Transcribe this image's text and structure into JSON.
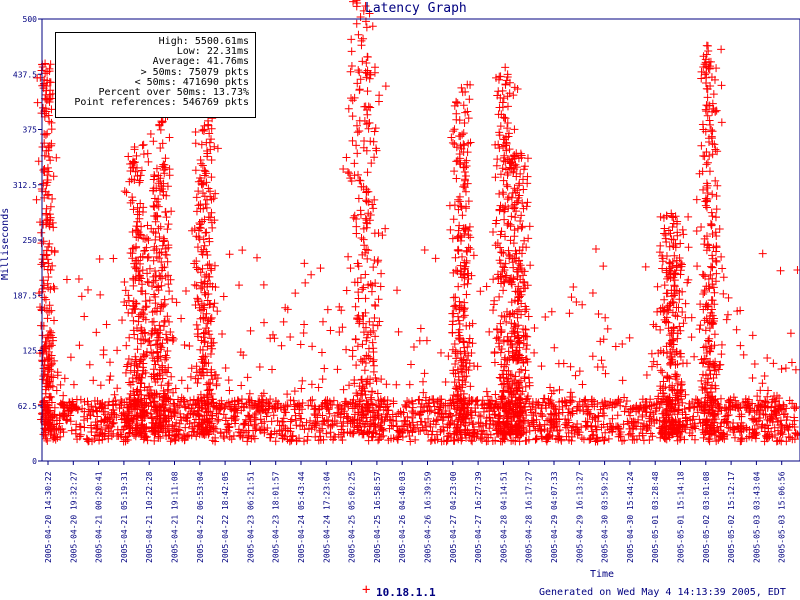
{
  "chart_data": {
    "type": "scatter",
    "title": "Latency Graph",
    "ylabel": "Milliseconds",
    "xlabel": "Time",
    "ylim": [
      0,
      500
    ],
    "y_ticks": [
      "0",
      "62.5",
      "125",
      "187.5",
      "250",
      "312.5",
      "375",
      "437.5",
      "500"
    ],
    "x_ticks": [
      "2005-04-20 14:30:22",
      "2005-04-20 19:32:27",
      "2005-04-21 00:20:41",
      "2005-04-21 05:19:31",
      "2005-04-21 10:22:28",
      "2005-04-21 19:11:08",
      "2005-04-22 06:53:04",
      "2005-04-22 18:42:05",
      "2005-04-23 06:21:51",
      "2005-04-23 18:01:57",
      "2005-04-24 05:43:44",
      "2005-04-24 17:23:04",
      "2005-04-25 05:02:25",
      "2005-04-25 16:58:57",
      "2005-04-26 04:40:03",
      "2005-04-26 16:39:59",
      "2005-04-27 04:23:00",
      "2005-04-27 16:27:39",
      "2005-04-28 04:14:51",
      "2005-04-28 16:17:27",
      "2005-04-29 04:07:33",
      "2005-04-29 16:13:27",
      "2005-04-30 03:59:25",
      "2005-04-30 15:44:24",
      "2005-05-01 03:28:48",
      "2005-05-01 15:14:18",
      "2005-05-02 03:01:08",
      "2005-05-02 15:12:17",
      "2005-05-03 03:43:04",
      "2005-05-03 15:06:56"
    ],
    "grid": false,
    "series": [
      {
        "name": "10.18.1.1",
        "color": "#ff0000"
      }
    ],
    "stats": {
      "high": "5500.61ms",
      "low": "22.31ms",
      "average": "41.76ms",
      "over_50": "75079 pkts",
      "under_50": "471690 pkts",
      "percent_over_50": "13.73%",
      "point_references": "546769 pkts"
    },
    "note": "Latency spikes cluster around x-ticks 2005-04-21 10:22:28, 2005-04-21 19:11:08, 2005-04-22 06:53:04, 2005-04-25 16:58:57, 2005-04-27 16:27:39, 2005-04-28 04:14:51, 2005-04-28 16:17:27 and 2005-05-02 03:01:08; baseline about 25-70 ms."
  },
  "labels": {
    "high": "High:",
    "low": "Low:",
    "average": "Average:",
    "over_50": "> 50ms:",
    "under_50": "< 50ms:",
    "percent_over_50": "Percent over 50ms:",
    "point_references": "Point references:"
  },
  "legend": {
    "marker": "+",
    "host": "10.18.1.1"
  },
  "generated_text": "Generated on Wed May  4 14:13:39 2005, EDT",
  "colors": {
    "axis": "#000080",
    "points": "#ff0000",
    "frame": "#000080"
  }
}
